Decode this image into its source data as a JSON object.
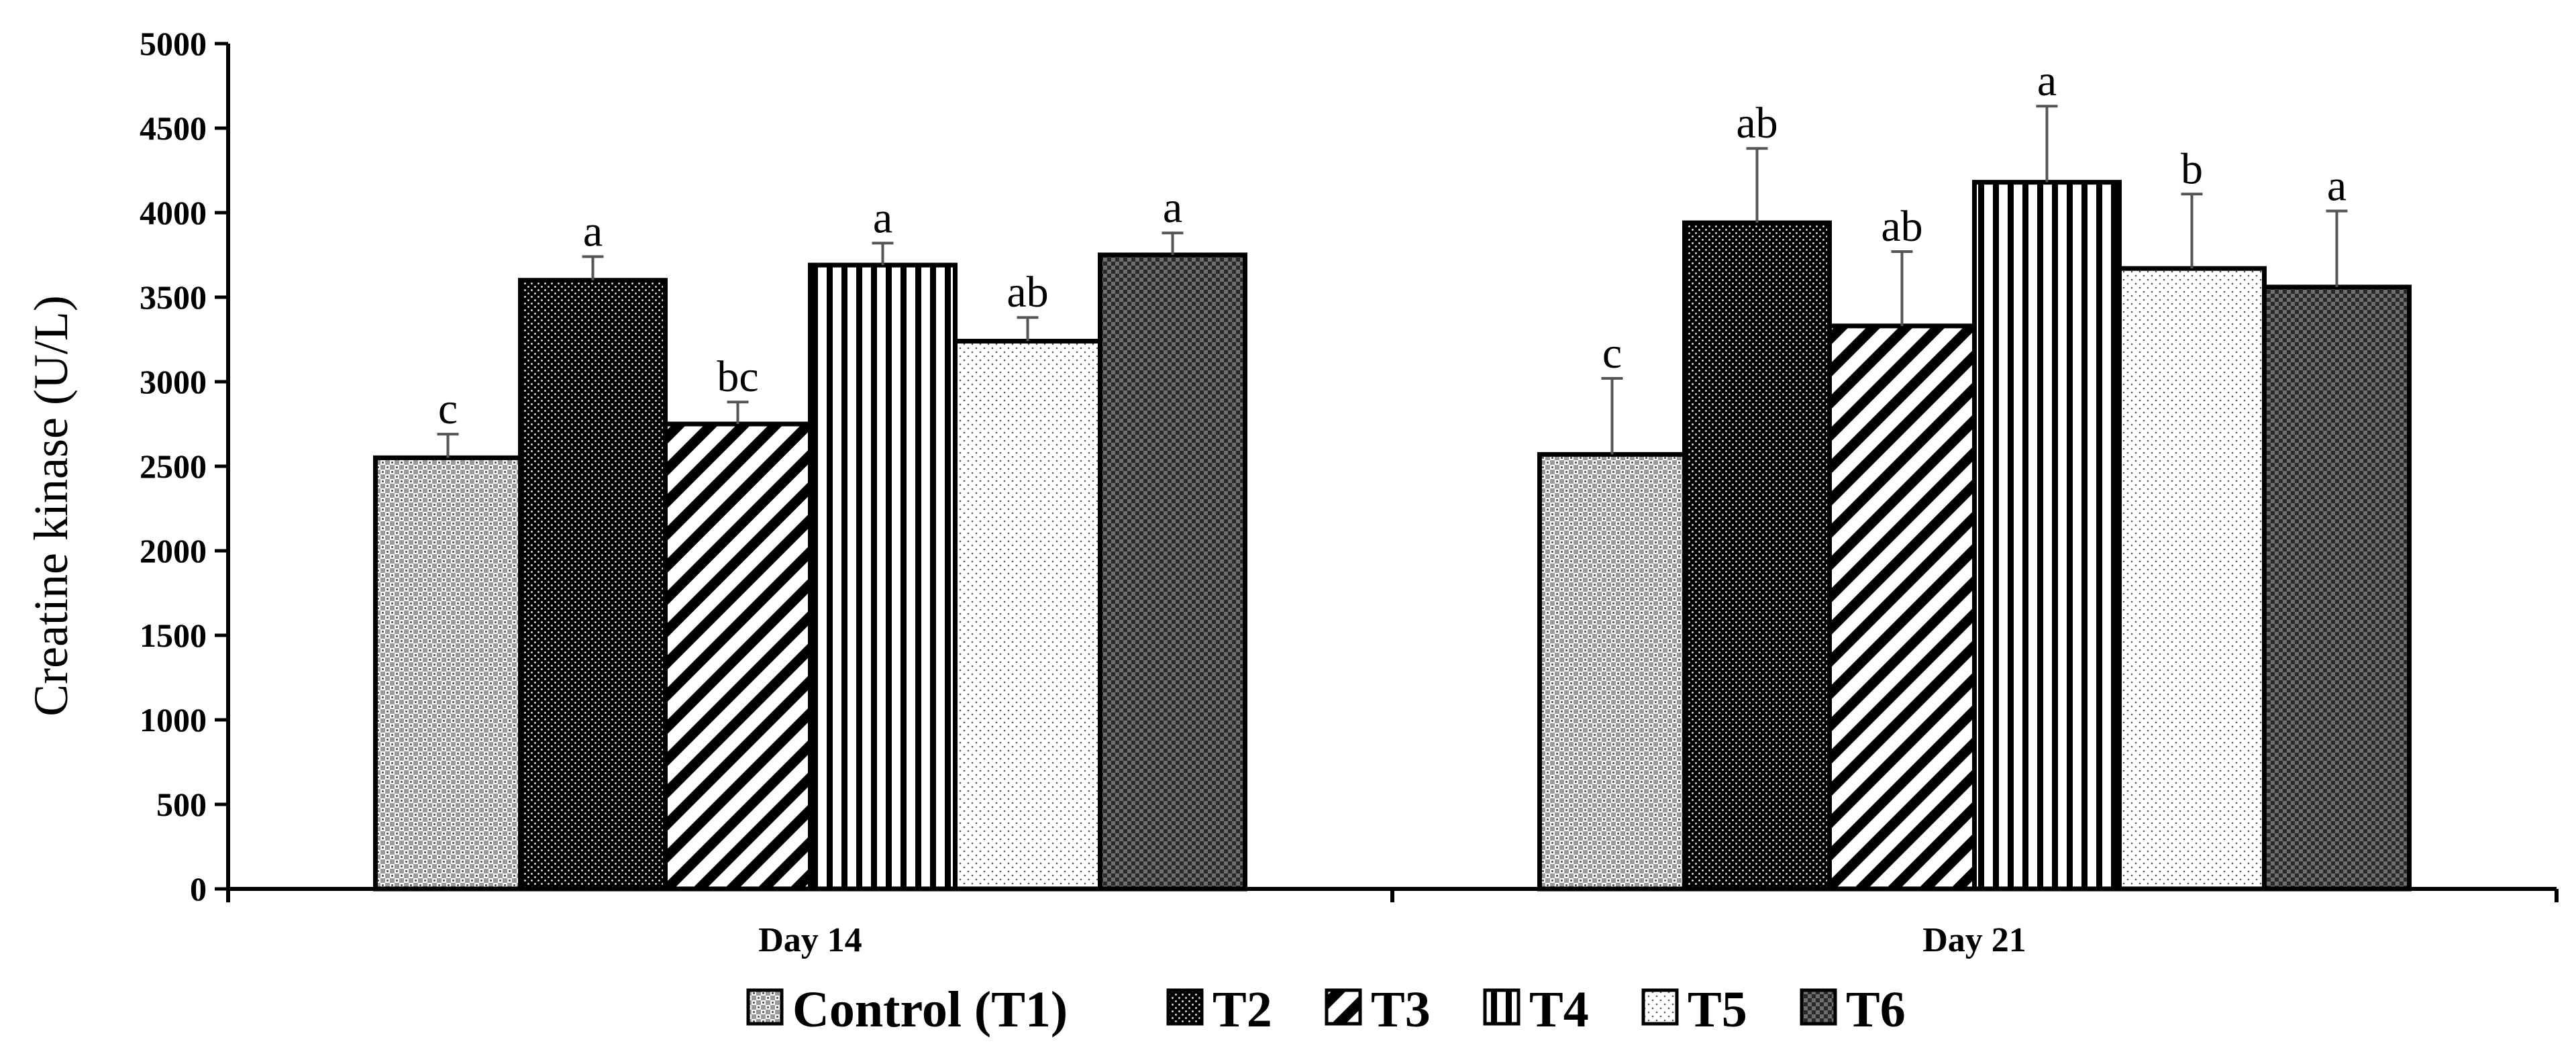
{
  "chart_data": {
    "type": "bar",
    "title": "",
    "xlabel": "",
    "ylabel": "Creatine kinase (U/L)",
    "ylim": [
      0,
      5000
    ],
    "yticks": [
      0,
      500,
      1000,
      1500,
      2000,
      2500,
      3000,
      3500,
      4000,
      4500,
      5000
    ],
    "categories": [
      "Day 14",
      "Day 21"
    ],
    "legend_position": "bottom",
    "grid": false,
    "series": [
      {
        "name": "Control (T1)",
        "pattern": "crosshatch-light",
        "values": [
          2550,
          2570
        ],
        "errors": [
          140,
          450
        ],
        "labels": [
          "c",
          "c"
        ]
      },
      {
        "name": "T2",
        "pattern": "dense-dots-dark",
        "values": [
          3600,
          3940
        ],
        "errors": [
          140,
          440
        ],
        "labels": [
          "a",
          "ab"
        ]
      },
      {
        "name": "T3",
        "pattern": "diagonal-stripes",
        "values": [
          2750,
          3330
        ],
        "errors": [
          130,
          440
        ],
        "labels": [
          "bc",
          "ab"
        ]
      },
      {
        "name": "T4",
        "pattern": "vertical-stripes",
        "values": [
          3690,
          4180
        ],
        "errors": [
          130,
          450
        ],
        "labels": [
          "a",
          "a"
        ]
      },
      {
        "name": "T5",
        "pattern": "sparse-dots",
        "values": [
          3240,
          3670
        ],
        "errors": [
          140,
          440
        ],
        "labels": [
          "ab",
          "b"
        ]
      },
      {
        "name": "T6",
        "pattern": "checker-dark",
        "values": [
          3750,
          3560
        ],
        "errors": [
          130,
          450
        ],
        "labels": [
          "a",
          "a"
        ]
      }
    ]
  }
}
